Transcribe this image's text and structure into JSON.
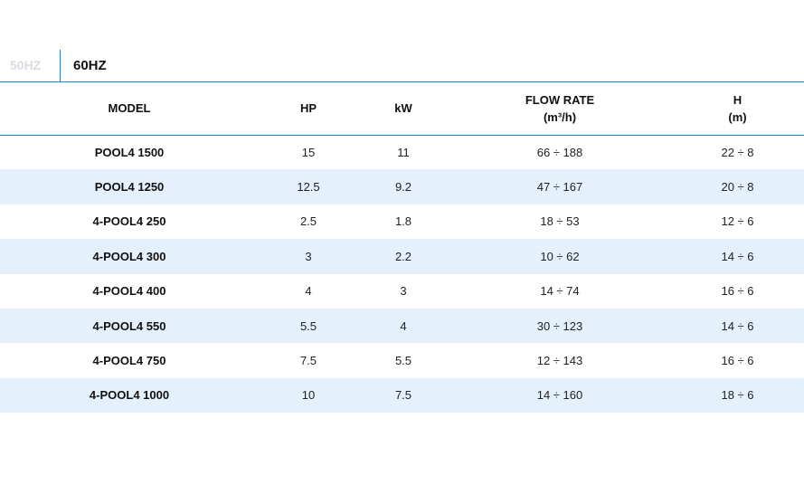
{
  "tabs": [
    {
      "label": "50HZ",
      "active": false
    },
    {
      "label": "60HZ",
      "active": true
    }
  ],
  "colors": {
    "accent": "#2e7cc4",
    "row_stripe": "#e4f0fc",
    "inactive_tab": "#d8dbe0"
  },
  "table": {
    "headers": {
      "model": "MODEL",
      "hp": "HP",
      "kw": "kW",
      "flow_rate": "FLOW RATE",
      "flow_rate_unit": "(m³/h)",
      "h": "H",
      "h_unit": "(m)"
    },
    "rows": [
      {
        "model": "POOL4 1500",
        "hp": "15",
        "kw": "11",
        "flow": "66 ÷ 188",
        "h": "22 ÷ 8"
      },
      {
        "model": "POOL4 1250",
        "hp": "12.5",
        "kw": "9.2",
        "flow": "47 ÷ 167",
        "h": "20 ÷ 8"
      },
      {
        "model": "4-POOL4 250",
        "hp": "2.5",
        "kw": "1.8",
        "flow": "18 ÷ 53",
        "h": "12 ÷ 6"
      },
      {
        "model": "4-POOL4 300",
        "hp": "3",
        "kw": "2.2",
        "flow": "10 ÷ 62",
        "h": "14 ÷ 6"
      },
      {
        "model": "4-POOL4 400",
        "hp": "4",
        "kw": "3",
        "flow": "14 ÷ 74",
        "h": "16 ÷ 6"
      },
      {
        "model": "4-POOL4 550",
        "hp": "5.5",
        "kw": "4",
        "flow": "30 ÷ 123",
        "h": "14 ÷ 6"
      },
      {
        "model": "4-POOL4 750",
        "hp": "7.5",
        "kw": "5.5",
        "flow": "12 ÷ 143",
        "h": "16 ÷ 6"
      },
      {
        "model": "4-POOL4 1000",
        "hp": "10",
        "kw": "7.5",
        "flow": "14 ÷ 160",
        "h": "18 ÷ 6"
      }
    ]
  }
}
